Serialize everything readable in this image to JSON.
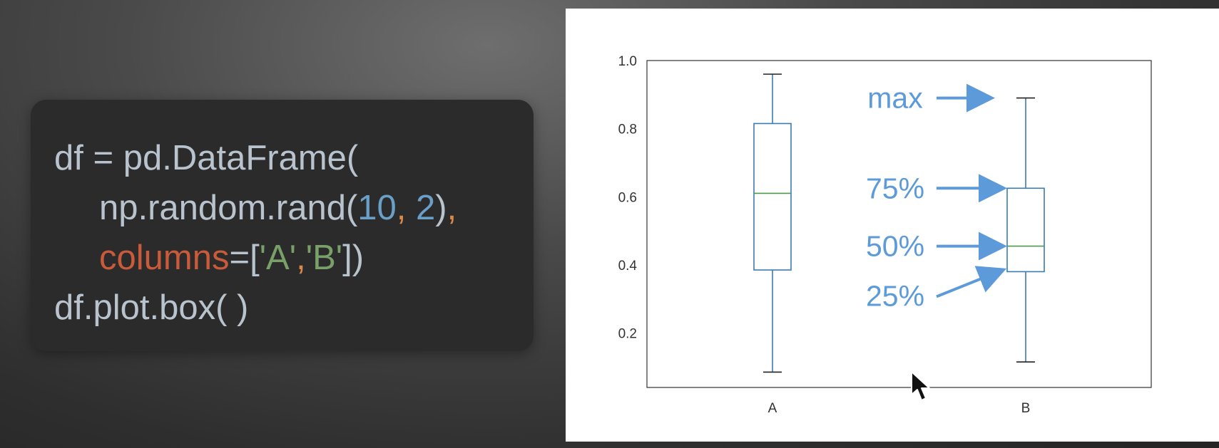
{
  "code": {
    "line1": "df = pd.DataFrame(",
    "line2_fn": "np.random.rand(",
    "line2_n1": "10",
    "line2_comma": ",",
    "line2_n2": " 2",
    "line2_close": ")",
    "line2_tail": ",",
    "line3_kw": "columns",
    "line3_eq": "=[",
    "line3_a": "'A'",
    "line3_sep": ",",
    "line3_b": "'B'",
    "line3_end": "])",
    "line4": "df.plot.box( )"
  },
  "chart_data": {
    "type": "box",
    "categories": [
      "A",
      "B"
    ],
    "series": [
      {
        "category": "A",
        "min": 0.085,
        "q1": 0.385,
        "median": 0.61,
        "q3": 0.815,
        "max": 0.96
      },
      {
        "category": "B",
        "min": 0.115,
        "q1": 0.38,
        "median": 0.455,
        "q3": 0.625,
        "max": 0.89
      }
    ],
    "ylim": [
      0.04,
      1.0
    ],
    "yticks": [
      "1.0",
      "0.8",
      "0.6",
      "0.4",
      "0.2"
    ],
    "ytick_values": [
      1.0,
      0.8,
      0.6,
      0.4,
      0.2
    ],
    "annotations": [
      {
        "label": "max",
        "target": "max"
      },
      {
        "label": "75%",
        "target": "q3"
      },
      {
        "label": "50%",
        "target": "median"
      },
      {
        "label": "25%",
        "target": "q1"
      }
    ],
    "colors": {
      "box": "#3b7bb0",
      "median": "#4a9a4a",
      "whisker_cap": "#222222",
      "annotation": "#5c9ad9"
    }
  }
}
